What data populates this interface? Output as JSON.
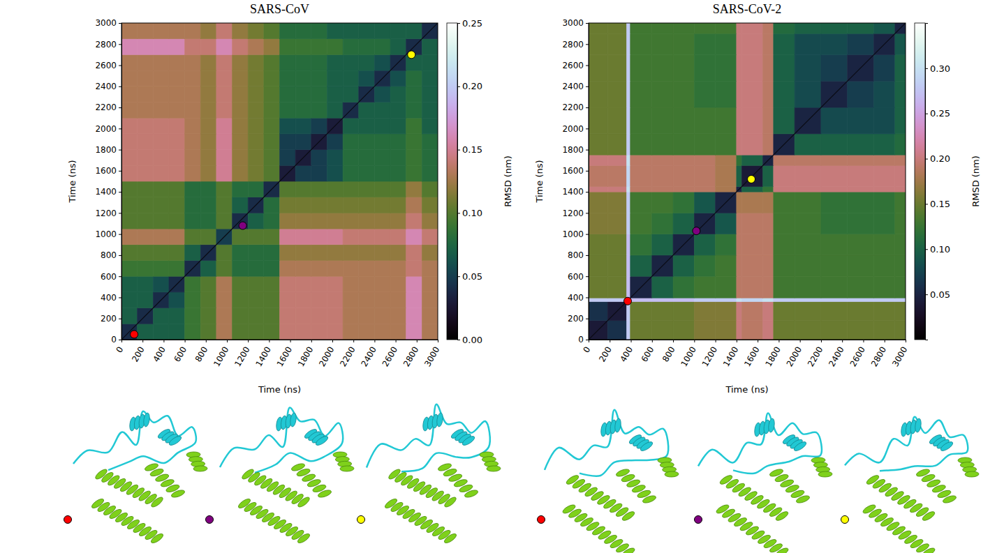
{
  "chart_data": [
    {
      "type": "heatmap",
      "title": "SARS-CoV",
      "x_label": "Time (ns)",
      "y_label": "Time (ns)",
      "xlim": [
        0,
        3000
      ],
      "ylim": [
        0,
        3000
      ],
      "xticks": [
        0,
        200,
        400,
        600,
        800,
        1000,
        1200,
        1400,
        1600,
        1800,
        2000,
        2200,
        2400,
        2600,
        2800,
        3000
      ],
      "yticks": [
        0,
        200,
        400,
        600,
        800,
        1000,
        1200,
        1400,
        1600,
        1800,
        2000,
        2200,
        2400,
        2600,
        2800,
        3000
      ],
      "bins": [
        0,
        150,
        300,
        450,
        600,
        750,
        900,
        1050,
        1200,
        1350,
        1500,
        1650,
        1800,
        1950,
        2100,
        2250,
        2400,
        2550,
        2700,
        2850,
        3000
      ],
      "values": [
        [
          0.04,
          0.07,
          0.07,
          0.07,
          0.09,
          0.1,
          0.13,
          0.1,
          0.1,
          0.1,
          0.14,
          0.14,
          0.14,
          0.14,
          0.13,
          0.13,
          0.13,
          0.13,
          0.16,
          0.13
        ],
        [
          0.07,
          0.04,
          0.07,
          0.07,
          0.09,
          0.1,
          0.13,
          0.1,
          0.1,
          0.1,
          0.14,
          0.14,
          0.14,
          0.14,
          0.13,
          0.13,
          0.13,
          0.13,
          0.16,
          0.13
        ],
        [
          0.07,
          0.07,
          0.04,
          0.06,
          0.09,
          0.1,
          0.13,
          0.1,
          0.1,
          0.1,
          0.14,
          0.14,
          0.14,
          0.14,
          0.13,
          0.13,
          0.13,
          0.13,
          0.16,
          0.13
        ],
        [
          0.07,
          0.07,
          0.06,
          0.04,
          0.09,
          0.1,
          0.13,
          0.1,
          0.1,
          0.1,
          0.14,
          0.14,
          0.14,
          0.14,
          0.13,
          0.13,
          0.13,
          0.13,
          0.16,
          0.13
        ],
        [
          0.09,
          0.09,
          0.09,
          0.09,
          0.04,
          0.07,
          0.1,
          0.08,
          0.08,
          0.08,
          0.13,
          0.13,
          0.13,
          0.13,
          0.13,
          0.13,
          0.13,
          0.13,
          0.14,
          0.13
        ],
        [
          0.1,
          0.1,
          0.1,
          0.1,
          0.07,
          0.04,
          0.1,
          0.08,
          0.08,
          0.08,
          0.12,
          0.12,
          0.12,
          0.12,
          0.12,
          0.12,
          0.12,
          0.12,
          0.14,
          0.12
        ],
        [
          0.13,
          0.13,
          0.13,
          0.13,
          0.1,
          0.1,
          0.05,
          0.1,
          0.1,
          0.1,
          0.15,
          0.15,
          0.15,
          0.15,
          0.14,
          0.14,
          0.14,
          0.14,
          0.16,
          0.14
        ],
        [
          0.1,
          0.1,
          0.1,
          0.1,
          0.08,
          0.08,
          0.1,
          0.04,
          0.07,
          0.08,
          0.12,
          0.12,
          0.12,
          0.12,
          0.12,
          0.12,
          0.12,
          0.12,
          0.14,
          0.12
        ],
        [
          0.1,
          0.1,
          0.1,
          0.1,
          0.08,
          0.08,
          0.1,
          0.07,
          0.04,
          0.08,
          0.11,
          0.11,
          0.11,
          0.11,
          0.11,
          0.11,
          0.11,
          0.11,
          0.13,
          0.11
        ],
        [
          0.1,
          0.1,
          0.1,
          0.1,
          0.08,
          0.08,
          0.1,
          0.08,
          0.08,
          0.04,
          0.1,
          0.1,
          0.1,
          0.1,
          0.1,
          0.1,
          0.1,
          0.1,
          0.12,
          0.1
        ],
        [
          0.14,
          0.14,
          0.14,
          0.14,
          0.13,
          0.12,
          0.15,
          0.12,
          0.11,
          0.1,
          0.03,
          0.05,
          0.05,
          0.06,
          0.08,
          0.08,
          0.08,
          0.08,
          0.09,
          0.08
        ],
        [
          0.14,
          0.14,
          0.14,
          0.14,
          0.13,
          0.12,
          0.15,
          0.12,
          0.11,
          0.1,
          0.05,
          0.03,
          0.05,
          0.06,
          0.08,
          0.08,
          0.08,
          0.08,
          0.09,
          0.08
        ],
        [
          0.14,
          0.14,
          0.14,
          0.14,
          0.13,
          0.12,
          0.15,
          0.12,
          0.11,
          0.1,
          0.05,
          0.05,
          0.03,
          0.05,
          0.08,
          0.08,
          0.08,
          0.08,
          0.09,
          0.08
        ],
        [
          0.14,
          0.14,
          0.14,
          0.14,
          0.13,
          0.12,
          0.15,
          0.12,
          0.11,
          0.1,
          0.06,
          0.06,
          0.05,
          0.03,
          0.07,
          0.07,
          0.07,
          0.07,
          0.09,
          0.07
        ],
        [
          0.13,
          0.13,
          0.13,
          0.13,
          0.13,
          0.12,
          0.14,
          0.12,
          0.11,
          0.1,
          0.08,
          0.08,
          0.08,
          0.07,
          0.04,
          0.07,
          0.07,
          0.07,
          0.08,
          0.07
        ],
        [
          0.13,
          0.13,
          0.13,
          0.13,
          0.13,
          0.12,
          0.14,
          0.12,
          0.11,
          0.1,
          0.08,
          0.08,
          0.08,
          0.07,
          0.07,
          0.04,
          0.06,
          0.07,
          0.08,
          0.07
        ],
        [
          0.13,
          0.13,
          0.13,
          0.13,
          0.13,
          0.12,
          0.14,
          0.12,
          0.11,
          0.1,
          0.08,
          0.08,
          0.08,
          0.07,
          0.07,
          0.06,
          0.04,
          0.06,
          0.08,
          0.07
        ],
        [
          0.13,
          0.13,
          0.13,
          0.13,
          0.13,
          0.12,
          0.14,
          0.12,
          0.11,
          0.1,
          0.08,
          0.08,
          0.08,
          0.07,
          0.07,
          0.07,
          0.06,
          0.04,
          0.07,
          0.07
        ],
        [
          0.16,
          0.16,
          0.16,
          0.16,
          0.14,
          0.14,
          0.16,
          0.14,
          0.13,
          0.12,
          0.09,
          0.09,
          0.09,
          0.09,
          0.08,
          0.08,
          0.08,
          0.07,
          0.04,
          0.07
        ],
        [
          0.13,
          0.13,
          0.13,
          0.13,
          0.13,
          0.12,
          0.14,
          0.12,
          0.11,
          0.1,
          0.08,
          0.08,
          0.08,
          0.07,
          0.07,
          0.07,
          0.07,
          0.07,
          0.07,
          0.04
        ]
      ],
      "colorbar_label": "RMSD (nm)",
      "clim": [
        0,
        0.25
      ],
      "cticks": [
        {
          "value": 0,
          "label": "0.00"
        },
        0.05,
        {
          "value": 0.1,
          "label": "0.10"
        },
        0.15,
        {
          "value": 0.2,
          "label": "0.20"
        },
        0.25
      ],
      "snapshots": {
        "x": [
          120,
          1150,
          2750
        ],
        "y": [
          50,
          1080,
          2700
        ],
        "colors": [
          "#ff0000",
          "#800080",
          "#ffff00"
        ]
      }
    },
    {
      "type": "heatmap",
      "title": "SARS-CoV-2",
      "x_label": "Time (ns)",
      "y_label": "Time (ns)",
      "xlim": [
        0,
        3000
      ],
      "ylim": [
        0,
        3000
      ],
      "xticks": [
        0,
        200,
        400,
        600,
        800,
        1000,
        1200,
        1400,
        1600,
        1800,
        2000,
        2200,
        2400,
        2600,
        2800,
        3000
      ],
      "yticks": [
        0,
        200,
        400,
        600,
        800,
        1000,
        1200,
        1400,
        1600,
        1800,
        2000,
        2200,
        2400,
        2600,
        2800,
        3000
      ],
      "bins": [
        0,
        180,
        360,
        395,
        600,
        800,
        1000,
        1200,
        1400,
        1450,
        1650,
        1750,
        1950,
        2200,
        2450,
        2700,
        2900,
        3000
      ],
      "values": [
        [
          0.04,
          0.06,
          0.28,
          0.15,
          0.15,
          0.15,
          0.16,
          0.16,
          0.2,
          0.19,
          0.2,
          0.15,
          0.15,
          0.15,
          0.15,
          0.15,
          0.15
        ],
        [
          0.06,
          0.04,
          0.28,
          0.15,
          0.15,
          0.15,
          0.16,
          0.16,
          0.2,
          0.19,
          0.2,
          0.15,
          0.15,
          0.15,
          0.15,
          0.15,
          0.15
        ],
        [
          0.28,
          0.28,
          0.03,
          0.27,
          0.27,
          0.27,
          0.28,
          0.28,
          0.3,
          0.29,
          0.3,
          0.28,
          0.28,
          0.28,
          0.28,
          0.28,
          0.28
        ],
        [
          0.15,
          0.15,
          0.27,
          0.05,
          0.1,
          0.12,
          0.13,
          0.13,
          0.19,
          0.19,
          0.19,
          0.13,
          0.13,
          0.13,
          0.13,
          0.13,
          0.13
        ],
        [
          0.15,
          0.15,
          0.27,
          0.1,
          0.05,
          0.1,
          0.12,
          0.13,
          0.19,
          0.19,
          0.19,
          0.13,
          0.13,
          0.13,
          0.13,
          0.13,
          0.13
        ],
        [
          0.15,
          0.15,
          0.27,
          0.12,
          0.1,
          0.05,
          0.1,
          0.12,
          0.19,
          0.19,
          0.19,
          0.13,
          0.13,
          0.13,
          0.13,
          0.13,
          0.13
        ],
        [
          0.16,
          0.16,
          0.28,
          0.13,
          0.12,
          0.1,
          0.05,
          0.09,
          0.19,
          0.19,
          0.19,
          0.13,
          0.13,
          0.12,
          0.12,
          0.12,
          0.13
        ],
        [
          0.16,
          0.16,
          0.28,
          0.13,
          0.13,
          0.12,
          0.09,
          0.05,
          0.18,
          0.18,
          0.18,
          0.13,
          0.13,
          0.12,
          0.12,
          0.12,
          0.13
        ],
        [
          0.2,
          0.2,
          0.3,
          0.19,
          0.19,
          0.19,
          0.19,
          0.18,
          0.05,
          0.1,
          0.12,
          0.2,
          0.2,
          0.2,
          0.2,
          0.2,
          0.2
        ],
        [
          0.19,
          0.19,
          0.29,
          0.19,
          0.19,
          0.19,
          0.19,
          0.18,
          0.1,
          0.04,
          0.1,
          0.2,
          0.2,
          0.2,
          0.2,
          0.2,
          0.2
        ],
        [
          0.2,
          0.2,
          0.3,
          0.19,
          0.19,
          0.19,
          0.19,
          0.18,
          0.12,
          0.1,
          0.05,
          0.19,
          0.19,
          0.19,
          0.19,
          0.19,
          0.19
        ],
        [
          0.15,
          0.15,
          0.28,
          0.13,
          0.13,
          0.13,
          0.13,
          0.13,
          0.2,
          0.2,
          0.19,
          0.05,
          0.1,
          0.1,
          0.1,
          0.1,
          0.11
        ],
        [
          0.15,
          0.15,
          0.28,
          0.13,
          0.13,
          0.13,
          0.13,
          0.13,
          0.2,
          0.2,
          0.19,
          0.1,
          0.05,
          0.08,
          0.08,
          0.08,
          0.1
        ],
        [
          0.15,
          0.15,
          0.28,
          0.13,
          0.13,
          0.13,
          0.12,
          0.12,
          0.2,
          0.2,
          0.19,
          0.1,
          0.08,
          0.05,
          0.07,
          0.08,
          0.1
        ],
        [
          0.15,
          0.15,
          0.28,
          0.13,
          0.13,
          0.13,
          0.12,
          0.12,
          0.2,
          0.2,
          0.19,
          0.1,
          0.08,
          0.07,
          0.05,
          0.07,
          0.1
        ],
        [
          0.15,
          0.15,
          0.28,
          0.13,
          0.13,
          0.13,
          0.12,
          0.12,
          0.2,
          0.2,
          0.19,
          0.1,
          0.08,
          0.08,
          0.07,
          0.05,
          0.09
        ],
        [
          0.15,
          0.15,
          0.28,
          0.13,
          0.13,
          0.13,
          0.13,
          0.13,
          0.2,
          0.2,
          0.19,
          0.11,
          0.1,
          0.1,
          0.1,
          0.09,
          0.05
        ]
      ],
      "colorbar_label": "RMSD (nm)",
      "clim": [
        0,
        0.35
      ],
      "cticks": [
        0.05,
        {
          "value": 0.1,
          "label": "0.10"
        },
        0.15,
        {
          "value": 0.2,
          "label": "0.20"
        },
        0.25,
        {
          "value": 0.3,
          "label": "0.30"
        }
      ],
      "snapshots": {
        "x": [
          370,
          1020,
          1540
        ],
        "y": [
          365,
          1030,
          1520
        ],
        "colors": [
          "#ff0000",
          "#800080",
          "#ffff00"
        ]
      }
    }
  ]
}
